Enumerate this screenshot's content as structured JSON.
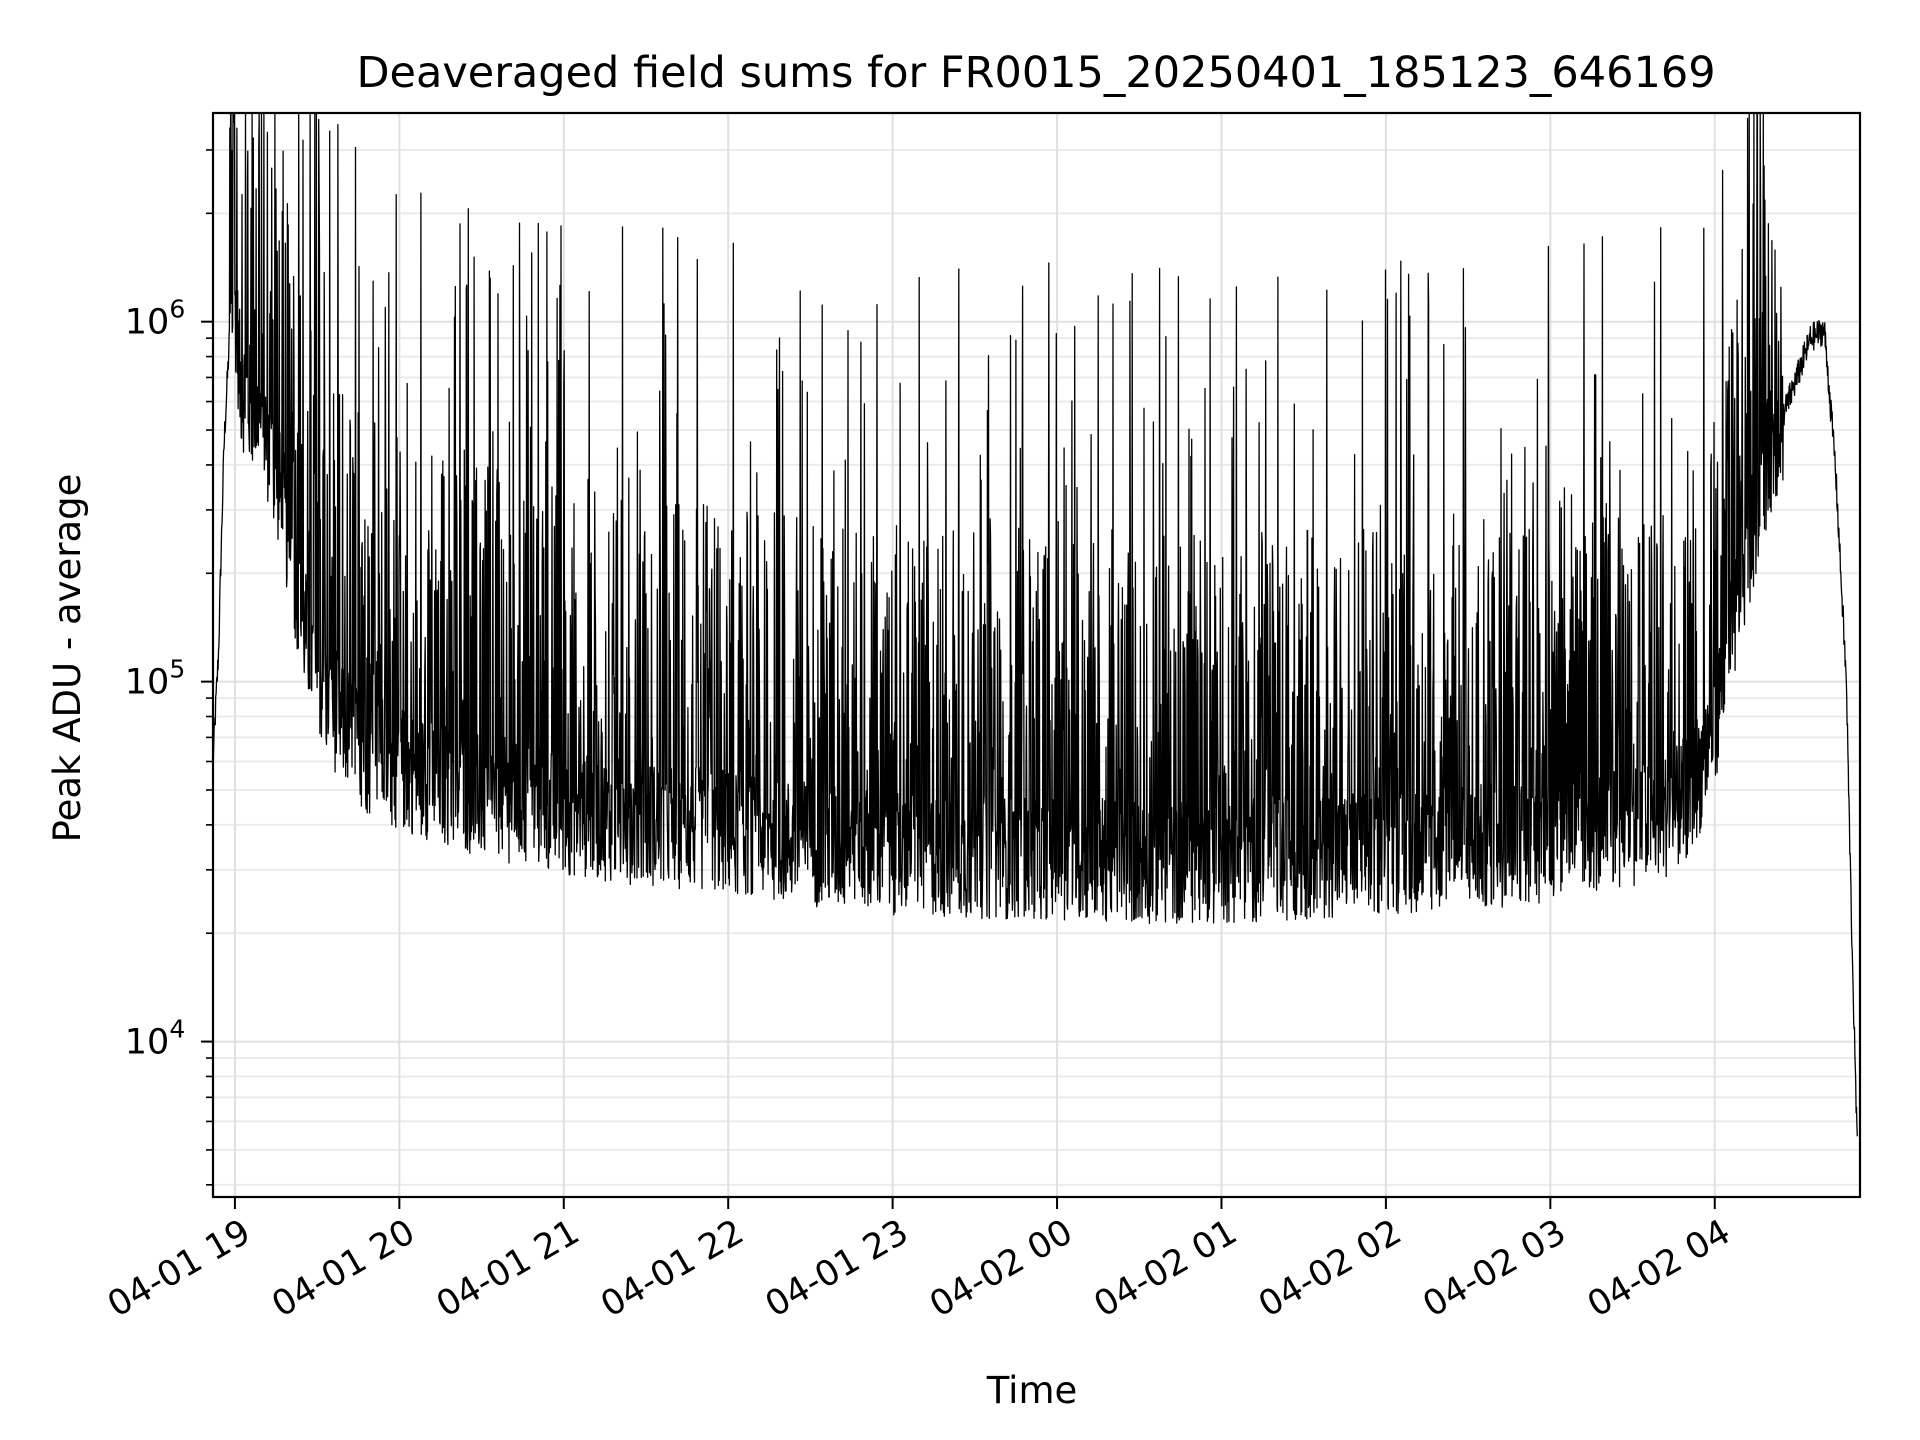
{
  "chart_data": {
    "type": "line",
    "title": "Deaveraged field sums for FR0015_20250401_185123_646169",
    "xlabel": "Time",
    "ylabel": "Peak ADU - average",
    "y_scale": "log",
    "ylim": [
      3700,
      3800000
    ],
    "xlim": [
      "2025-04-01 18:52",
      "2025-04-02 04:53"
    ],
    "x_ticks": [
      "04-01 19",
      "04-01 20",
      "04-01 21",
      "04-01 22",
      "04-01 23",
      "04-02 00",
      "04-02 01",
      "04-02 02",
      "04-02 03",
      "04-02 04"
    ],
    "x_tick_times": [
      "2025-04-01 19:00",
      "2025-04-01 20:00",
      "2025-04-01 21:00",
      "2025-04-01 22:00",
      "2025-04-01 23:00",
      "2025-04-02 00:00",
      "2025-04-02 01:00",
      "2025-04-02 02:00",
      "2025-04-02 03:00",
      "2025-04-02 04:00"
    ],
    "y_ticks": [
      {
        "value": 10000,
        "base": "10",
        "exp": "4"
      },
      {
        "value": 100000,
        "base": "10",
        "exp": "5"
      },
      {
        "value": 1000000,
        "base": "10",
        "exp": "6"
      }
    ],
    "grid": true,
    "line_color": "#000000",
    "series": [
      {
        "x": [
          "2025-04-01 18:52",
          "2025-04-01 18:54",
          "2025-04-01 18:56",
          "2025-04-01 18:58",
          "2025-04-01 19:00",
          "2025-04-01 19:02",
          "2025-04-01 19:04",
          "2025-04-01 19:06",
          "2025-04-01 19:10",
          "2025-04-01 19:15",
          "2025-04-01 19:20",
          "2025-04-01 19:25",
          "2025-04-01 19:30",
          "2025-04-01 19:35",
          "2025-04-01 19:40",
          "2025-04-01 19:45",
          "2025-04-01 19:50",
          "2025-04-01 20:00",
          "2025-04-01 20:15",
          "2025-04-01 20:30",
          "2025-04-01 20:45",
          "2025-04-01 21:00",
          "2025-04-01 21:30",
          "2025-04-01 22:00",
          "2025-04-01 22:30",
          "2025-04-01 23:00",
          "2025-04-01 23:30",
          "2025-04-02 00:00",
          "2025-04-02 00:30",
          "2025-04-02 01:00",
          "2025-04-02 01:30",
          "2025-04-02 02:00",
          "2025-04-02 02:30",
          "2025-04-02 03:00",
          "2025-04-02 03:15",
          "2025-04-02 03:30",
          "2025-04-02 03:45",
          "2025-04-02 03:50",
          "2025-04-02 03:55",
          "2025-04-02 04:00",
          "2025-04-02 04:05",
          "2025-04-02 04:10",
          "2025-04-02 04:15",
          "2025-04-02 04:20",
          "2025-04-02 04:25",
          "2025-04-02 04:30",
          "2025-04-02 04:35",
          "2025-04-02 04:40",
          "2025-04-02 04:44",
          "2025-04-02 04:48",
          "2025-04-02 04:50",
          "2025-04-02 04:52"
        ],
        "y": [
          60000,
          120000,
          450000,
          900000,
          1200000,
          700000,
          650000,
          600000,
          550000,
          400000,
          250000,
          150000,
          110000,
          90000,
          80000,
          70000,
          65000,
          60000,
          55000,
          50000,
          48000,
          45000,
          42000,
          40000,
          37000,
          35000,
          34000,
          34000,
          33000,
          33000,
          34000,
          35000,
          36000,
          38000,
          40000,
          42000,
          45000,
          50000,
          60000,
          80000,
          130000,
          200000,
          300000,
          450000,
          550000,
          700000,
          900000,
          950000,
          400000,
          100000,
          20000,
          5000
        ],
        "spike_range": [
          3,
          8
        ]
      }
    ]
  }
}
